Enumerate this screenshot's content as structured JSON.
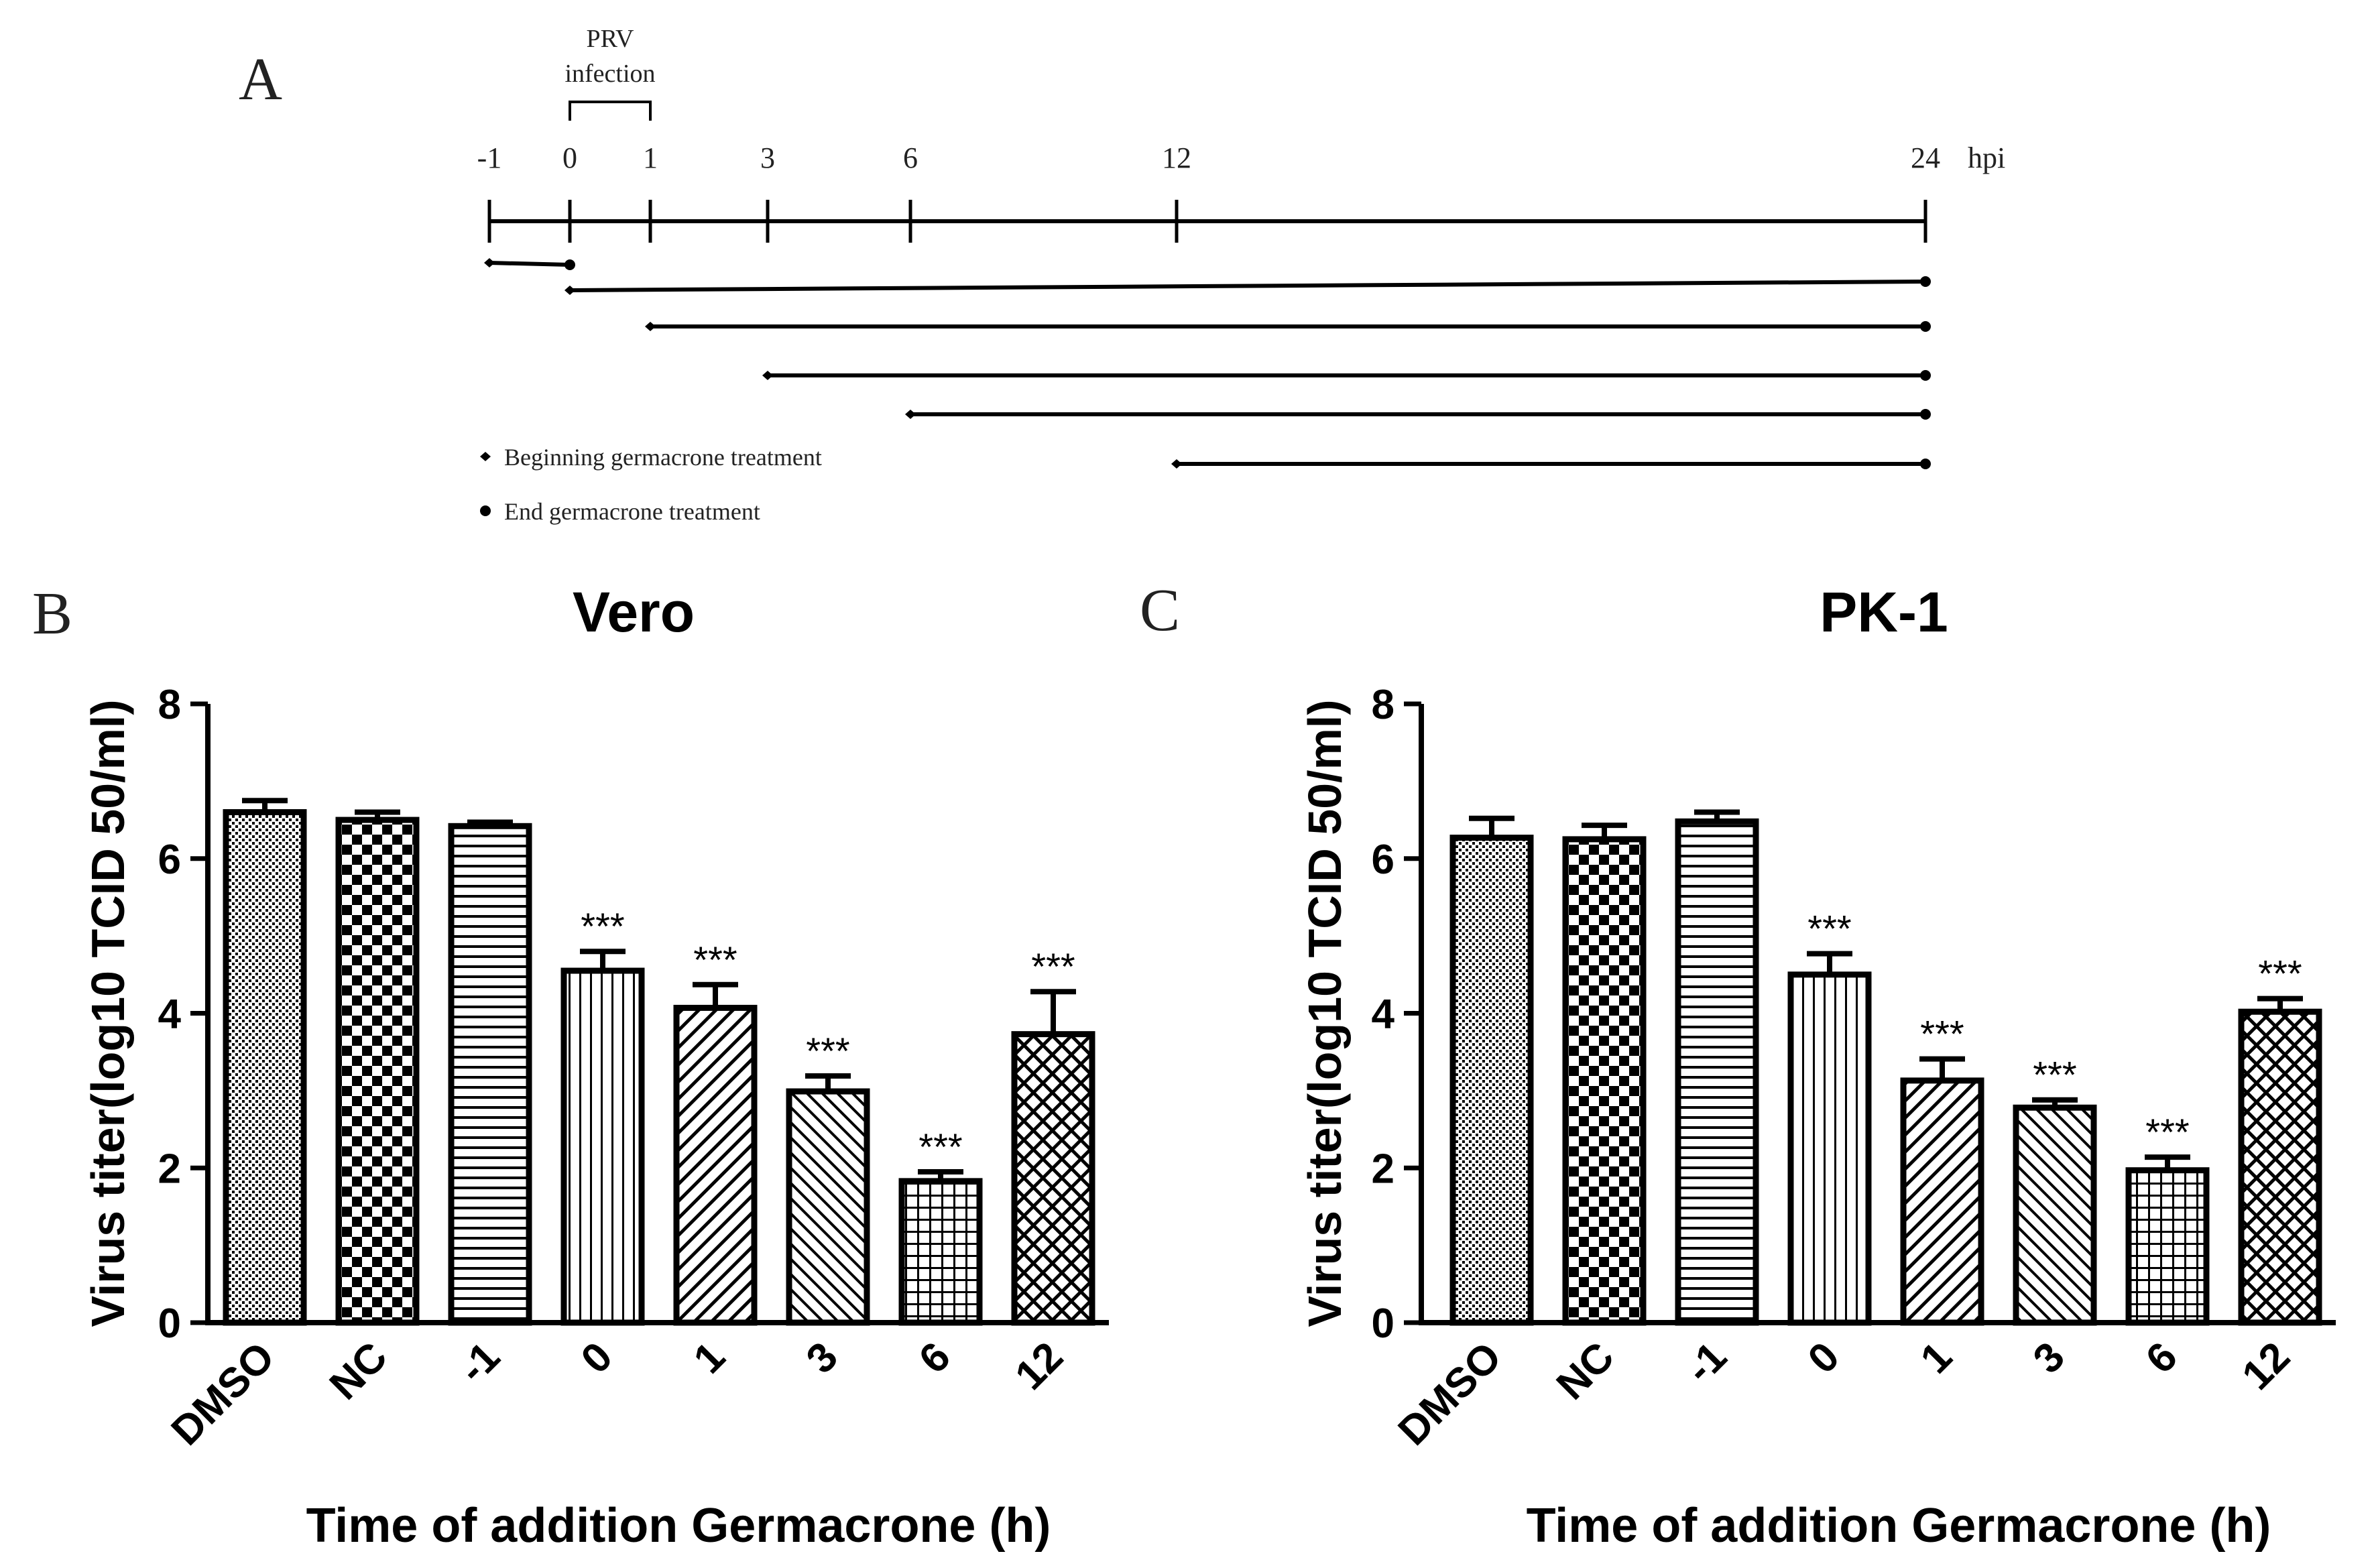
{
  "panel_labels": {
    "a": "A",
    "b": "B",
    "c": "C"
  },
  "timeline": {
    "infection_label_line1": "PRV",
    "infection_label_line2": "infection",
    "ticks": [
      "-1",
      "0",
      "1",
      "3",
      "6",
      "12",
      "24"
    ],
    "unit": "hpi",
    "treatments": [
      {
        "start": -1,
        "end": 0
      },
      {
        "start": 0,
        "end": 24
      },
      {
        "start": 1,
        "end": 24
      },
      {
        "start": 3,
        "end": 24
      },
      {
        "start": 6,
        "end": 24
      },
      {
        "start": 12,
        "end": 24
      }
    ],
    "legend": {
      "begin": "Beginning germacrone treatment",
      "end": "End germacrone treatment"
    }
  },
  "chart_data": [
    {
      "type": "bar",
      "title": "Vero",
      "xlabel": "Time of addition Germacrone (h)",
      "ylabel": "Virus titer(log10 TCID 50/ml)",
      "ylim": [
        0,
        8
      ],
      "yticks": [
        "0",
        "2",
        "4",
        "6",
        "8"
      ],
      "categories": [
        "DMSO",
        "NC",
        "-1",
        "0",
        "1",
        "3",
        "6",
        "12"
      ],
      "values": [
        6.6,
        6.5,
        6.42,
        4.55,
        4.07,
        2.99,
        1.83,
        3.73
      ],
      "errors": [
        0.15,
        0.1,
        0.05,
        0.25,
        0.3,
        0.2,
        0.12,
        0.55
      ],
      "significance": [
        "",
        "",
        "",
        "***",
        "***",
        "***",
        "***",
        "***"
      ]
    },
    {
      "type": "bar",
      "title": "PK-1",
      "xlabel": "Time of addition Germacrone (h)",
      "ylabel": "Virus titer(log10 TCID 50/ml)",
      "ylim": [
        0,
        8
      ],
      "yticks": [
        "0",
        "2",
        "4",
        "6",
        "8"
      ],
      "categories": [
        "DMSO",
        "NC",
        "-1",
        "0",
        "1",
        "3",
        "6",
        "12"
      ],
      "values": [
        6.27,
        6.25,
        6.48,
        4.5,
        3.13,
        2.78,
        1.97,
        4.02
      ],
      "errors": [
        0.25,
        0.18,
        0.12,
        0.27,
        0.28,
        0.1,
        0.17,
        0.17
      ],
      "significance": [
        "",
        "",
        "",
        "***",
        "***",
        "***",
        "***",
        "***"
      ]
    }
  ]
}
